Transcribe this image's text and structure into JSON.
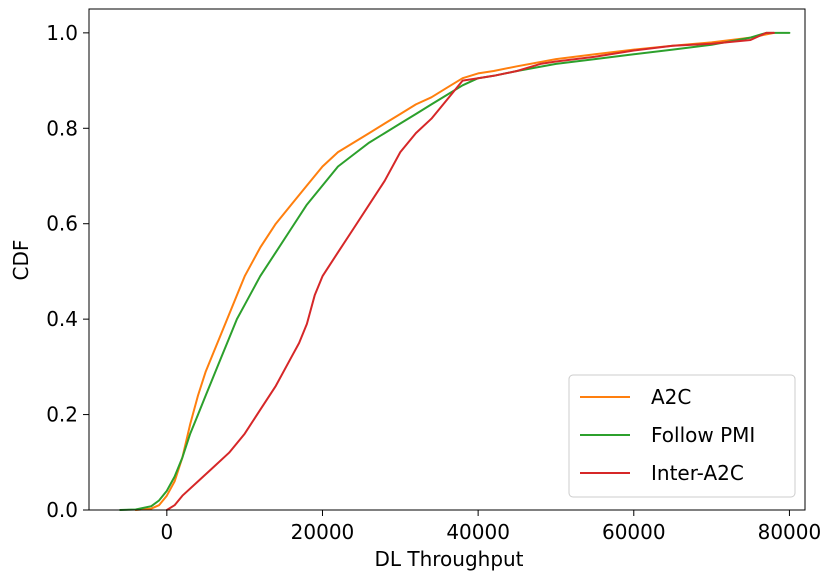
{
  "chart_data": {
    "type": "line",
    "title": "",
    "xlabel": "DL Throughput",
    "ylabel": "CDF",
    "xlim": [
      -10000,
      82000
    ],
    "ylim": [
      0.0,
      1.05
    ],
    "xticks": [
      0,
      20000,
      40000,
      60000,
      80000
    ],
    "xtick_labels": [
      "0",
      "20000",
      "40000",
      "60000",
      "80000"
    ],
    "yticks": [
      0.0,
      0.2,
      0.4,
      0.6,
      0.8,
      1.0
    ],
    "ytick_labels": [
      "0.0",
      "0.2",
      "0.4",
      "0.6",
      "0.8",
      "1.0"
    ],
    "grid": false,
    "legend_position": "bottom-right",
    "series": [
      {
        "name": "A2C",
        "color": "#ff7f0e",
        "points": [
          [
            -4000,
            0
          ],
          [
            -2000,
            0.003
          ],
          [
            -1000,
            0.01
          ],
          [
            0,
            0.03
          ],
          [
            1000,
            0.06
          ],
          [
            2000,
            0.11
          ],
          [
            3000,
            0.18
          ],
          [
            4000,
            0.24
          ],
          [
            5000,
            0.29
          ],
          [
            6000,
            0.33
          ],
          [
            7000,
            0.37
          ],
          [
            8000,
            0.41
          ],
          [
            9000,
            0.45
          ],
          [
            10000,
            0.49
          ],
          [
            12000,
            0.55
          ],
          [
            14000,
            0.6
          ],
          [
            16000,
            0.64
          ],
          [
            18000,
            0.68
          ],
          [
            20000,
            0.72
          ],
          [
            22000,
            0.75
          ],
          [
            24000,
            0.77
          ],
          [
            26000,
            0.79
          ],
          [
            28000,
            0.81
          ],
          [
            30000,
            0.83
          ],
          [
            32000,
            0.85
          ],
          [
            34000,
            0.865
          ],
          [
            36000,
            0.885
          ],
          [
            38000,
            0.905
          ],
          [
            40000,
            0.915
          ],
          [
            42000,
            0.92
          ],
          [
            45000,
            0.93
          ],
          [
            50000,
            0.945
          ],
          [
            55000,
            0.955
          ],
          [
            60000,
            0.965
          ],
          [
            65000,
            0.973
          ],
          [
            70000,
            0.98
          ],
          [
            75000,
            0.99
          ],
          [
            78000,
            1.0
          ]
        ]
      },
      {
        "name": "Follow PMI",
        "color": "#2ca02c",
        "points": [
          [
            -6000,
            0
          ],
          [
            -4000,
            0.001
          ],
          [
            -2000,
            0.008
          ],
          [
            -1000,
            0.02
          ],
          [
            0,
            0.04
          ],
          [
            1000,
            0.07
          ],
          [
            2000,
            0.11
          ],
          [
            3000,
            0.16
          ],
          [
            4000,
            0.2
          ],
          [
            5000,
            0.24
          ],
          [
            6000,
            0.28
          ],
          [
            7000,
            0.32
          ],
          [
            8000,
            0.36
          ],
          [
            9000,
            0.4
          ],
          [
            10000,
            0.43
          ],
          [
            12000,
            0.49
          ],
          [
            14000,
            0.54
          ],
          [
            16000,
            0.59
          ],
          [
            18000,
            0.64
          ],
          [
            20000,
            0.68
          ],
          [
            22000,
            0.72
          ],
          [
            24000,
            0.745
          ],
          [
            26000,
            0.77
          ],
          [
            28000,
            0.79
          ],
          [
            30000,
            0.81
          ],
          [
            32000,
            0.83
          ],
          [
            34000,
            0.85
          ],
          [
            36000,
            0.87
          ],
          [
            38000,
            0.89
          ],
          [
            40000,
            0.905
          ],
          [
            42000,
            0.91
          ],
          [
            45000,
            0.92
          ],
          [
            50000,
            0.935
          ],
          [
            55000,
            0.945
          ],
          [
            60000,
            0.955
          ],
          [
            65000,
            0.965
          ],
          [
            70000,
            0.975
          ],
          [
            75000,
            0.99
          ],
          [
            77000,
            1.0
          ],
          [
            80000,
            1.0
          ]
        ]
      },
      {
        "name": "Inter-A2C",
        "color": "#d62728",
        "points": [
          [
            0,
            0
          ],
          [
            1000,
            0.01
          ],
          [
            2000,
            0.03
          ],
          [
            4000,
            0.06
          ],
          [
            6000,
            0.09
          ],
          [
            8000,
            0.12
          ],
          [
            10000,
            0.16
          ],
          [
            12000,
            0.21
          ],
          [
            14000,
            0.26
          ],
          [
            16000,
            0.32
          ],
          [
            17000,
            0.35
          ],
          [
            18000,
            0.39
          ],
          [
            19000,
            0.45
          ],
          [
            20000,
            0.49
          ],
          [
            22000,
            0.54
          ],
          [
            24000,
            0.59
          ],
          [
            26000,
            0.64
          ],
          [
            28000,
            0.69
          ],
          [
            30000,
            0.75
          ],
          [
            32000,
            0.79
          ],
          [
            34000,
            0.82
          ],
          [
            36000,
            0.86
          ],
          [
            38000,
            0.9
          ],
          [
            40000,
            0.905
          ],
          [
            42000,
            0.91
          ],
          [
            45000,
            0.92
          ],
          [
            48000,
            0.935
          ],
          [
            50000,
            0.94
          ],
          [
            55000,
            0.95
          ],
          [
            60000,
            0.963
          ],
          [
            65000,
            0.973
          ],
          [
            70000,
            0.977
          ],
          [
            75000,
            0.985
          ],
          [
            77000,
            1.0
          ],
          [
            78000,
            1.0
          ]
        ]
      }
    ]
  }
}
